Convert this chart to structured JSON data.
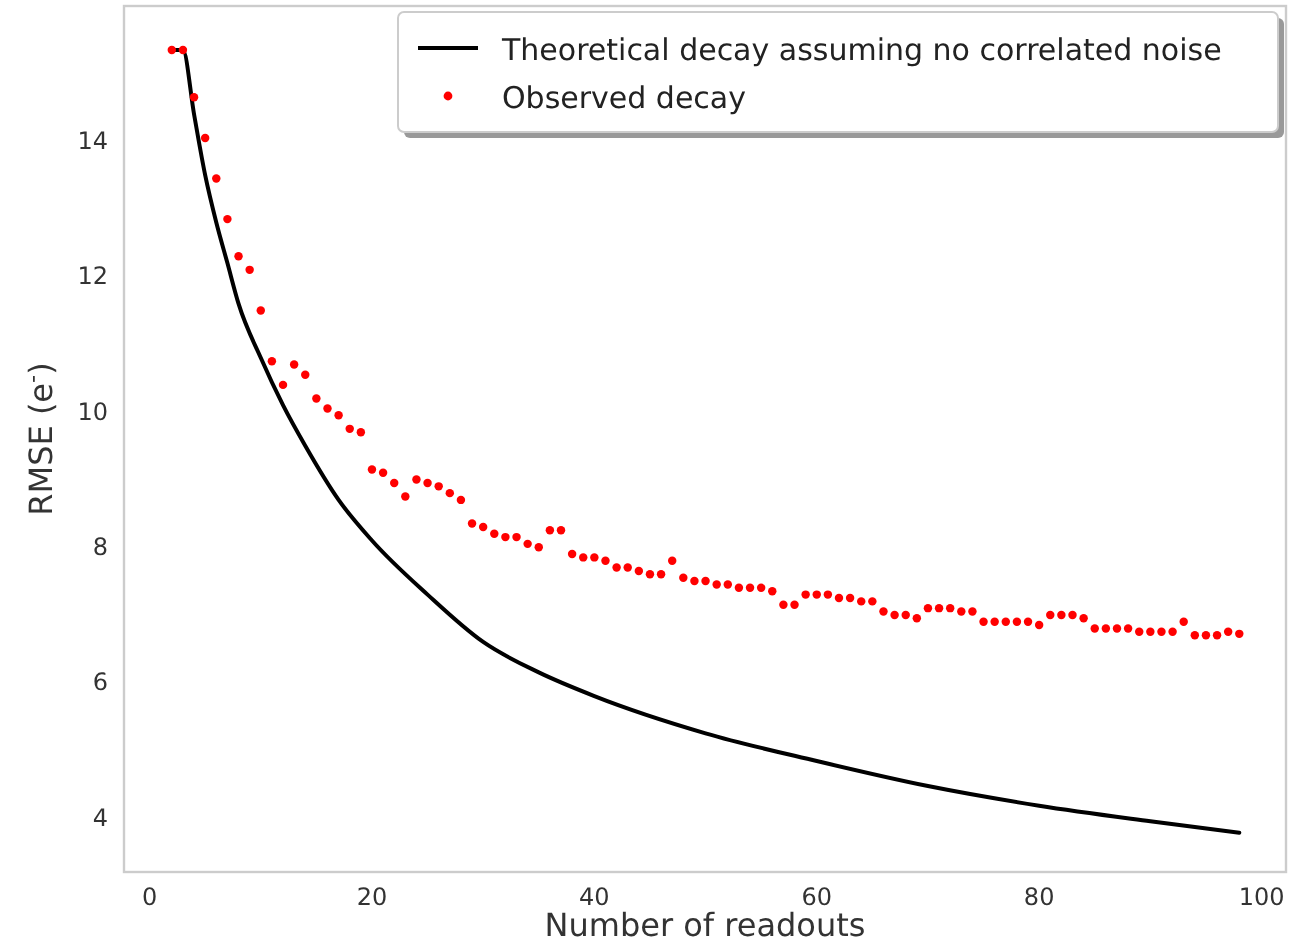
{
  "chart_data": {
    "type": "line",
    "xlabel": "Number of readouts",
    "ylabel": "RMSE (e$^{-}$)",
    "xlim": [
      -2.3,
      102.2
    ],
    "ylim": [
      3.2,
      16
    ],
    "xticks": [
      0,
      20,
      40,
      60,
      80,
      100
    ],
    "yticks": [
      4,
      6,
      8,
      10,
      12,
      14
    ],
    "grid": false,
    "legend": "top right",
    "series": [
      {
        "name": "Theoretical decay assuming no correlated noise",
        "color": "#000000",
        "marker": "none",
        "line_style": "solid",
        "x": [
          2,
          3,
          4,
          5,
          6,
          7,
          8,
          10,
          12,
          14,
          17,
          20,
          25,
          30,
          35,
          40,
          50,
          60,
          70,
          80,
          90,
          98
        ],
        "values": [
          15.35,
          15.35,
          14.4,
          13.5,
          12.8,
          12.2,
          11.6,
          10.8,
          10.1,
          9.5,
          8.7,
          8.1,
          7.3,
          6.6,
          6.15,
          5.8,
          5.25,
          4.84,
          4.47,
          4.18,
          3.95,
          3.78
        ]
      },
      {
        "name": "Observed decay",
        "type": "scatter",
        "color": "#ff0000",
        "marker": "circle",
        "x": [
          2,
          3,
          4,
          5,
          6,
          7,
          8,
          9,
          10,
          11,
          12,
          13,
          14,
          15,
          16,
          17,
          18,
          19,
          20,
          21,
          22,
          23,
          24,
          25,
          26,
          27,
          28,
          29,
          30,
          31,
          32,
          33,
          34,
          35,
          36,
          37,
          38,
          39,
          40,
          41,
          42,
          43,
          44,
          45,
          46,
          47,
          48,
          49,
          50,
          51,
          52,
          53,
          54,
          55,
          56,
          57,
          58,
          59,
          60,
          61,
          62,
          63,
          64,
          65,
          66,
          67,
          68,
          69,
          70,
          71,
          72,
          73,
          74,
          75,
          76,
          77,
          78,
          79,
          80,
          81,
          82,
          83,
          84,
          85,
          86,
          87,
          88,
          89,
          90,
          91,
          92,
          93,
          94,
          95,
          96,
          97,
          98
        ],
        "values": [
          15.35,
          15.35,
          14.65,
          14.05,
          13.45,
          12.85,
          12.3,
          12.1,
          11.5,
          10.75,
          10.4,
          10.7,
          10.55,
          10.2,
          10.05,
          9.95,
          9.75,
          9.7,
          9.15,
          9.1,
          8.95,
          8.75,
          9.0,
          8.95,
          8.9,
          8.8,
          8.7,
          8.35,
          8.3,
          8.2,
          8.15,
          8.15,
          8.05,
          8.0,
          8.25,
          8.25,
          7.9,
          7.85,
          7.85,
          7.8,
          7.7,
          7.7,
          7.65,
          7.6,
          7.6,
          7.8,
          7.55,
          7.5,
          7.5,
          7.45,
          7.45,
          7.4,
          7.4,
          7.4,
          7.35,
          7.15,
          7.15,
          7.3,
          7.3,
          7.3,
          7.25,
          7.25,
          7.2,
          7.2,
          7.05,
          7.0,
          7.0,
          6.95,
          7.1,
          7.1,
          7.1,
          7.05,
          7.05,
          6.9,
          6.9,
          6.9,
          6.9,
          6.9,
          6.85,
          7.0,
          7.0,
          7.0,
          6.95,
          6.8,
          6.8,
          6.8,
          6.8,
          6.75,
          6.75,
          6.75,
          6.75,
          6.9,
          6.7,
          6.7,
          6.7,
          6.75,
          6.72
        ]
      }
    ]
  }
}
